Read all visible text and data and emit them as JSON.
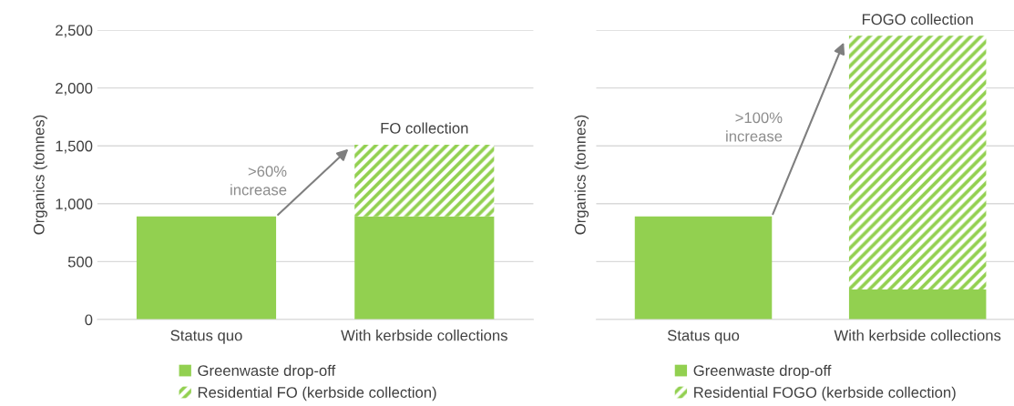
{
  "chart_data": [
    {
      "type": "bar",
      "stacked": true,
      "ylabel": "Organics (tonnes)",
      "categories": [
        "Status quo",
        "With kerbside collections"
      ],
      "series": [
        {
          "name": "Greenwaste drop-off",
          "color": "#92d050",
          "values": [
            890,
            890
          ]
        },
        {
          "name": "Residential FO (kerbside collection)",
          "color": "#92d050",
          "values": [
            0,
            620
          ]
        }
      ],
      "ylim": [
        0,
        2500
      ],
      "yticks": [
        {
          "value": 0,
          "label": "0"
        },
        {
          "value": 500,
          "label": "500"
        },
        {
          "value": 1000,
          "label": "1,000"
        },
        {
          "value": 1500,
          "label": "1,500"
        },
        {
          "value": 2000,
          "label": "2,000"
        },
        {
          "value": 2500,
          "label": "2,500"
        }
      ],
      "grid": "y",
      "legend": "bottom",
      "annotations": [
        {
          "text": "FO collection",
          "x": "With kerbside collections",
          "y": 1510
        },
        ">60%\nincrease"
      ]
    },
    {
      "type": "bar",
      "stacked": true,
      "ylabel": "Organics (tonnes)",
      "categories": [
        "Status quo",
        "With kerbside collections"
      ],
      "series": [
        {
          "name": "Greenwaste drop-off",
          "color": "#92d050",
          "values": [
            890,
            260
          ]
        },
        {
          "name": "Residential FOGO (kerbside collection)",
          "color": "#92d050",
          "values": [
            0,
            2190
          ]
        }
      ],
      "ylim": [
        0,
        2500
      ],
      "yticks": [
        0,
        500,
        1000,
        1500,
        2000,
        2500
      ],
      "tick_labels": "x",
      "grid": "y",
      "legend": "bottom",
      "annotations": [
        {
          "text": "FOGO collection",
          "x": "With kerbside collections",
          "y": 2450
        },
        ">100%\nincrease"
      ]
    }
  ]
}
